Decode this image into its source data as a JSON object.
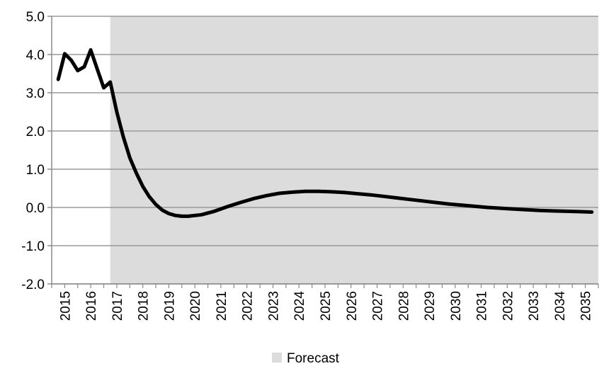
{
  "chart_data": {
    "type": "line",
    "title": "",
    "xlabel": "",
    "ylabel": "",
    "ylim": [
      -2.0,
      5.0
    ],
    "y_ticks": [
      "5.0",
      "4.0",
      "3.0",
      "2.0",
      "1.0",
      "0.0",
      "-1.0",
      "-2.0"
    ],
    "x_range": [
      2014.75,
      2035.75
    ],
    "x_tick_labels": [
      "2015",
      "2016",
      "2017",
      "2018",
      "2019",
      "2020",
      "2021",
      "2022",
      "2023",
      "2024",
      "2025",
      "2026",
      "2027",
      "2028",
      "2029",
      "2030",
      "2031",
      "2032",
      "2033",
      "2034",
      "2035"
    ],
    "grid": "horizontal",
    "forecast_region": {
      "label": "Forecast",
      "x_start": 2017.0,
      "x_end": 2035.75,
      "color": "#dcdcdc"
    },
    "legend": {
      "placement": "bottom",
      "entries": [
        {
          "label": "Forecast",
          "color": "#dcdcdc"
        }
      ]
    },
    "series": [
      {
        "color": "#000000",
        "points": [
          [
            2015.0,
            3.35
          ],
          [
            2015.25,
            4.02
          ],
          [
            2015.5,
            3.85
          ],
          [
            2015.75,
            3.58
          ],
          [
            2016.0,
            3.68
          ],
          [
            2016.25,
            4.12
          ],
          [
            2016.5,
            3.62
          ],
          [
            2016.75,
            3.13
          ],
          [
            2017.0,
            3.28
          ],
          [
            2017.25,
            2.5
          ],
          [
            2017.5,
            1.85
          ],
          [
            2017.75,
            1.3
          ],
          [
            2018.0,
            0.9
          ],
          [
            2018.25,
            0.55
          ],
          [
            2018.5,
            0.28
          ],
          [
            2018.75,
            0.08
          ],
          [
            2019.0,
            -0.07
          ],
          [
            2019.25,
            -0.16
          ],
          [
            2019.5,
            -0.21
          ],
          [
            2019.75,
            -0.23
          ],
          [
            2020.0,
            -0.23
          ],
          [
            2020.5,
            -0.19
          ],
          [
            2021.0,
            -0.1
          ],
          [
            2021.5,
            0.02
          ],
          [
            2022.0,
            0.13
          ],
          [
            2022.5,
            0.23
          ],
          [
            2023.0,
            0.31
          ],
          [
            2023.5,
            0.37
          ],
          [
            2024.0,
            0.4
          ],
          [
            2024.5,
            0.42
          ],
          [
            2025.0,
            0.42
          ],
          [
            2025.5,
            0.41
          ],
          [
            2026.0,
            0.39
          ],
          [
            2026.5,
            0.36
          ],
          [
            2027.0,
            0.33
          ],
          [
            2027.5,
            0.29
          ],
          [
            2028.0,
            0.25
          ],
          [
            2028.5,
            0.21
          ],
          [
            2029.0,
            0.17
          ],
          [
            2029.5,
            0.13
          ],
          [
            2030.0,
            0.09
          ],
          [
            2030.5,
            0.06
          ],
          [
            2031.0,
            0.03
          ],
          [
            2031.5,
            0.0
          ],
          [
            2032.0,
            -0.02
          ],
          [
            2032.5,
            -0.04
          ],
          [
            2033.0,
            -0.06
          ],
          [
            2033.5,
            -0.08
          ],
          [
            2034.0,
            -0.09
          ],
          [
            2034.5,
            -0.1
          ],
          [
            2035.0,
            -0.11
          ],
          [
            2035.5,
            -0.12
          ]
        ]
      }
    ]
  }
}
